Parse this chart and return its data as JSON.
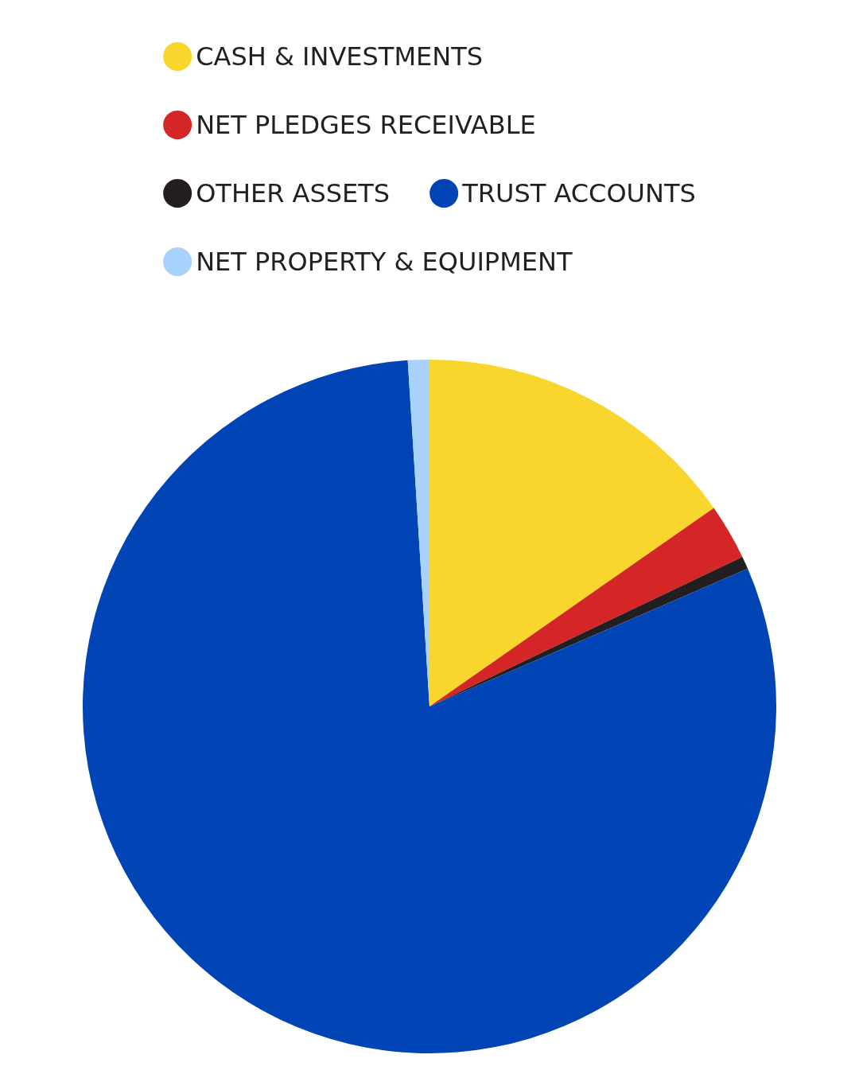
{
  "chart_data": {
    "type": "pie",
    "categories": [
      "CASH & INVESTMENTS",
      "NET PLEDGES RECEIVABLE",
      "OTHER ASSETS",
      "TRUST ACCOUNTS",
      "NET PROPERTY & EQUIPMENT"
    ],
    "values": [
      15.3,
      2.6,
      0.6,
      80.5,
      1.0
    ],
    "colors": [
      "#f9d62e",
      "#d42626",
      "#231f20",
      "#0044b5",
      "#a8d1fb"
    ],
    "legend": "top"
  }
}
